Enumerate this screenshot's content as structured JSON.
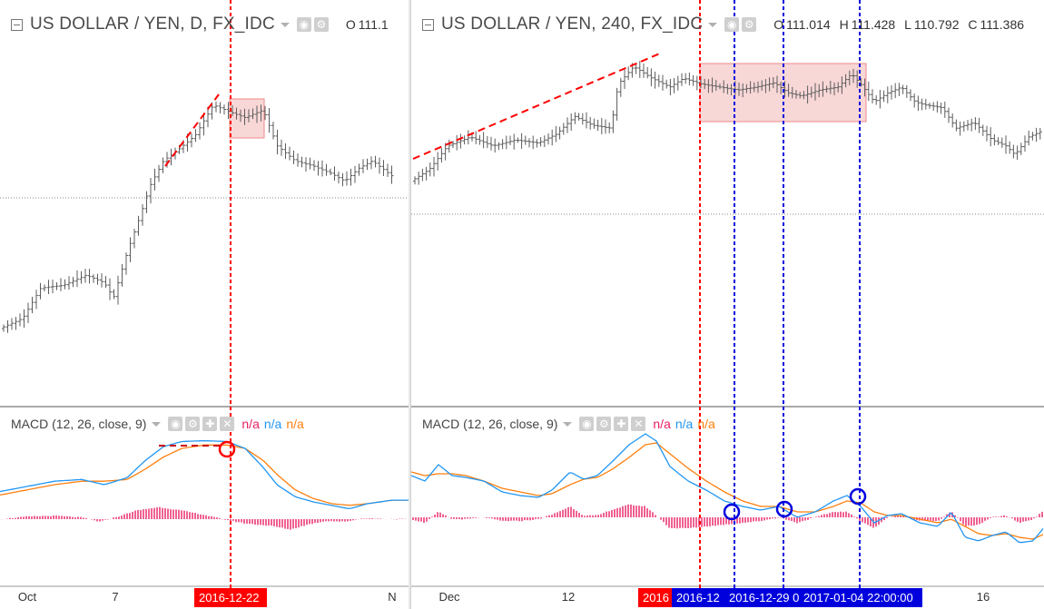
{
  "colors": {
    "candle": "#5c5c5c",
    "macd": "#2196f3",
    "signal": "#ff7f0e",
    "histogram": "#e91e63",
    "red": "#ff0000",
    "blue": "#0000dd",
    "box_fill": "#f8d7d7",
    "box_stroke": "#ef8a8a",
    "na_pink": "#e91e63",
    "na_blue": "#2196f3",
    "na_orange": "#ff7f0e"
  },
  "left": {
    "symbol": "US DOLLAR / YEN, D, FX_IDC",
    "ohlc": [
      {
        "label": "O",
        "value": "111.1"
      }
    ],
    "indicator": "MACD (12, 26, close, 9)",
    "na": [
      "n/a",
      "n/a",
      "n/a"
    ],
    "x_labels": [
      {
        "text": "Oct",
        "pos": 30
      },
      {
        "text": "7",
        "pos": 127
      },
      {
        "text": "N",
        "pos": 432
      }
    ],
    "date_tag": {
      "text": "2016-12-22",
      "bg": "#ff0000"
    }
  },
  "right": {
    "symbol": "US DOLLAR / YEN, 240, FX_IDC",
    "ohlc": [
      {
        "label": "O",
        "value": "111.014"
      },
      {
        "label": "H",
        "value": "111.428"
      },
      {
        "label": "L",
        "value": "110.792"
      },
      {
        "label": "C",
        "value": "111.386"
      }
    ],
    "indicator": "MACD (12, 26, close, 9)",
    "na": [
      "n/a",
      "n/a",
      "n/a"
    ],
    "x_labels": [
      {
        "text": "Dec",
        "pos": 42
      },
      {
        "text": "12",
        "pos": 173
      },
      {
        "text": "16",
        "pos": 630
      }
    ],
    "date_tags": [
      {
        "text": "2016",
        "bg": "#ff0000"
      },
      {
        "text": "2016-12",
        "bg": "#0000dd"
      },
      {
        "text": "2016-12-29 0",
        "bg": "#0000dd"
      },
      {
        "text": "2017-01-04 22:00:00",
        "bg": "#0000dd"
      }
    ]
  },
  "chart_data": [
    {
      "type": "candlestick",
      "title": "US DOLLAR / YEN, D, FX_IDC",
      "subplot": "MACD (12, 26, close, 9)",
      "x_ticks": [
        "Oct",
        "7",
        "N"
      ],
      "price_path": [
        [
          0,
          0.1
        ],
        [
          25,
          0.14
        ],
        [
          45,
          0.26
        ],
        [
          70,
          0.27
        ],
        [
          95,
          0.31
        ],
        [
          115,
          0.28
        ],
        [
          125,
          0.22
        ],
        [
          140,
          0.4
        ],
        [
          155,
          0.55
        ],
        [
          165,
          0.66
        ],
        [
          180,
          0.76
        ],
        [
          195,
          0.8
        ],
        [
          215,
          0.86
        ],
        [
          235,
          0.98
        ],
        [
          255,
          0.95
        ],
        [
          270,
          0.93
        ],
        [
          290,
          0.96
        ],
        [
          305,
          0.82
        ],
        [
          325,
          0.76
        ],
        [
          345,
          0.74
        ],
        [
          365,
          0.71
        ],
        [
          380,
          0.68
        ],
        [
          395,
          0.73
        ],
        [
          410,
          0.76
        ],
        [
          432,
          0.7
        ]
      ],
      "macd_path": [
        [
          0,
          0.32
        ],
        [
          30,
          0.38
        ],
        [
          60,
          0.44
        ],
        [
          90,
          0.46
        ],
        [
          115,
          0.4
        ],
        [
          140,
          0.48
        ],
        [
          160,
          0.68
        ],
        [
          180,
          0.84
        ],
        [
          200,
          0.9
        ],
        [
          225,
          0.91
        ],
        [
          250,
          0.9
        ],
        [
          270,
          0.82
        ],
        [
          290,
          0.6
        ],
        [
          305,
          0.4
        ],
        [
          325,
          0.26
        ],
        [
          345,
          0.2
        ],
        [
          365,
          0.16
        ],
        [
          385,
          0.12
        ],
        [
          405,
          0.18
        ],
        [
          432,
          0.22
        ]
      ],
      "signal_path": [
        [
          0,
          0.28
        ],
        [
          30,
          0.34
        ],
        [
          60,
          0.4
        ],
        [
          90,
          0.44
        ],
        [
          115,
          0.44
        ],
        [
          140,
          0.46
        ],
        [
          160,
          0.58
        ],
        [
          180,
          0.72
        ],
        [
          200,
          0.82
        ],
        [
          225,
          0.86
        ],
        [
          250,
          0.86
        ],
        [
          270,
          0.82
        ],
        [
          290,
          0.68
        ],
        [
          305,
          0.52
        ],
        [
          325,
          0.34
        ],
        [
          345,
          0.24
        ],
        [
          365,
          0.18
        ],
        [
          385,
          0.16
        ],
        [
          405,
          0.18
        ],
        [
          432,
          0.22
        ]
      ],
      "hist_path": [
        [
          0,
          0.0
        ],
        [
          30,
          0.03
        ],
        [
          60,
          0.04
        ],
        [
          90,
          0.02
        ],
        [
          110,
          -0.03
        ],
        [
          130,
          0.03
        ],
        [
          150,
          0.1
        ],
        [
          175,
          0.14
        ],
        [
          200,
          0.1
        ],
        [
          225,
          0.05
        ],
        [
          245,
          0.0
        ],
        [
          270,
          -0.05
        ],
        [
          300,
          -0.08
        ],
        [
          320,
          -0.12
        ],
        [
          340,
          -0.06
        ],
        [
          360,
          -0.02
        ],
        [
          380,
          -0.03
        ],
        [
          400,
          0.01
        ],
        [
          432,
          0.0
        ]
      ]
    },
    {
      "type": "candlestick",
      "title": "US DOLLAR / YEN, 240, FX_IDC",
      "subplot": "MACD (12, 26, close, 9)",
      "ohlc": {
        "open": 111.014,
        "high": 111.428,
        "low": 110.792,
        "close": 111.386
      },
      "x_ticks": [
        "Dec",
        "12",
        "16"
      ],
      "price_path": [
        [
          0,
          0.2
        ],
        [
          20,
          0.28
        ],
        [
          40,
          0.44
        ],
        [
          65,
          0.5
        ],
        [
          90,
          0.44
        ],
        [
          115,
          0.48
        ],
        [
          140,
          0.46
        ],
        [
          160,
          0.52
        ],
        [
          180,
          0.64
        ],
        [
          200,
          0.58
        ],
        [
          220,
          0.56
        ],
        [
          228,
          0.86
        ],
        [
          245,
          0.98
        ],
        [
          265,
          0.9
        ],
        [
          285,
          0.84
        ],
        [
          300,
          0.9
        ],
        [
          320,
          0.86
        ],
        [
          340,
          0.84
        ],
        [
          360,
          0.82
        ],
        [
          380,
          0.84
        ],
        [
          400,
          0.87
        ],
        [
          415,
          0.8
        ],
        [
          430,
          0.78
        ],
        [
          450,
          0.82
        ],
        [
          470,
          0.84
        ],
        [
          485,
          0.93
        ],
        [
          495,
          0.86
        ],
        [
          510,
          0.74
        ],
        [
          525,
          0.8
        ],
        [
          540,
          0.84
        ],
        [
          555,
          0.74
        ],
        [
          565,
          0.72
        ],
        [
          585,
          0.7
        ],
        [
          600,
          0.56
        ],
        [
          620,
          0.6
        ],
        [
          640,
          0.48
        ],
        [
          655,
          0.44
        ],
        [
          665,
          0.38
        ],
        [
          680,
          0.5
        ],
        [
          698,
          0.55
        ]
      ],
      "macd_path": [
        [
          0,
          0.46
        ],
        [
          15,
          0.4
        ],
        [
          30,
          0.58
        ],
        [
          45,
          0.46
        ],
        [
          60,
          0.44
        ],
        [
          80,
          0.4
        ],
        [
          100,
          0.28
        ],
        [
          120,
          0.24
        ],
        [
          140,
          0.22
        ],
        [
          155,
          0.3
        ],
        [
          175,
          0.5
        ],
        [
          190,
          0.42
        ],
        [
          205,
          0.46
        ],
        [
          220,
          0.6
        ],
        [
          240,
          0.8
        ],
        [
          258,
          0.92
        ],
        [
          270,
          0.84
        ],
        [
          285,
          0.56
        ],
        [
          305,
          0.4
        ],
        [
          325,
          0.3
        ],
        [
          345,
          0.18
        ],
        [
          365,
          0.12
        ],
        [
          385,
          0.08
        ],
        [
          405,
          0.12
        ],
        [
          425,
          0.0
        ],
        [
          445,
          0.06
        ],
        [
          465,
          0.18
        ],
        [
          480,
          0.24
        ],
        [
          495,
          0.12
        ],
        [
          510,
          -0.06
        ],
        [
          525,
          0.02
        ],
        [
          540,
          0.04
        ],
        [
          560,
          -0.06
        ],
        [
          580,
          -0.1
        ],
        [
          595,
          0.06
        ],
        [
          610,
          -0.22
        ],
        [
          625,
          -0.26
        ],
        [
          640,
          -0.2
        ],
        [
          655,
          -0.16
        ],
        [
          670,
          -0.28
        ],
        [
          685,
          -0.26
        ],
        [
          698,
          -0.1
        ]
      ],
      "signal_path": [
        [
          0,
          0.5
        ],
        [
          15,
          0.46
        ],
        [
          30,
          0.48
        ],
        [
          45,
          0.48
        ],
        [
          60,
          0.46
        ],
        [
          80,
          0.4
        ],
        [
          100,
          0.32
        ],
        [
          120,
          0.28
        ],
        [
          140,
          0.24
        ],
        [
          155,
          0.26
        ],
        [
          175,
          0.36
        ],
        [
          190,
          0.42
        ],
        [
          205,
          0.44
        ],
        [
          220,
          0.52
        ],
        [
          240,
          0.66
        ],
        [
          258,
          0.8
        ],
        [
          270,
          0.82
        ],
        [
          285,
          0.7
        ],
        [
          305,
          0.54
        ],
        [
          325,
          0.4
        ],
        [
          345,
          0.28
        ],
        [
          365,
          0.18
        ],
        [
          385,
          0.12
        ],
        [
          405,
          0.12
        ],
        [
          425,
          0.06
        ],
        [
          445,
          0.06
        ],
        [
          465,
          0.12
        ],
        [
          480,
          0.18
        ],
        [
          495,
          0.16
        ],
        [
          510,
          0.06
        ],
        [
          525,
          0.02
        ],
        [
          540,
          0.02
        ],
        [
          560,
          -0.02
        ],
        [
          580,
          -0.06
        ],
        [
          595,
          -0.02
        ],
        [
          610,
          -0.1
        ],
        [
          625,
          -0.18
        ],
        [
          640,
          -0.2
        ],
        [
          655,
          -0.18
        ],
        [
          670,
          -0.22
        ],
        [
          685,
          -0.24
        ],
        [
          698,
          -0.18
        ]
      ],
      "hist_path": [
        [
          0,
          -0.02
        ],
        [
          15,
          -0.06
        ],
        [
          30,
          0.06
        ],
        [
          45,
          -0.02
        ],
        [
          60,
          -0.02
        ],
        [
          80,
          0.0
        ],
        [
          100,
          -0.04
        ],
        [
          120,
          -0.04
        ],
        [
          140,
          -0.02
        ],
        [
          155,
          0.03
        ],
        [
          175,
          0.12
        ],
        [
          190,
          0.02
        ],
        [
          205,
          0.02
        ],
        [
          220,
          0.08
        ],
        [
          240,
          0.14
        ],
        [
          258,
          0.12
        ],
        [
          270,
          0.02
        ],
        [
          285,
          -0.12
        ],
        [
          305,
          -0.12
        ],
        [
          325,
          -0.1
        ],
        [
          345,
          -0.08
        ],
        [
          365,
          -0.06
        ],
        [
          385,
          -0.04
        ],
        [
          405,
          0.0
        ],
        [
          425,
          -0.06
        ],
        [
          445,
          0.0
        ],
        [
          465,
          0.06
        ],
        [
          480,
          0.06
        ],
        [
          495,
          -0.04
        ],
        [
          510,
          -0.12
        ],
        [
          525,
          0.0
        ],
        [
          540,
          0.02
        ],
        [
          560,
          -0.04
        ],
        [
          580,
          -0.04
        ],
        [
          595,
          0.07
        ],
        [
          610,
          -0.1
        ],
        [
          625,
          -0.08
        ],
        [
          640,
          0.0
        ],
        [
          655,
          0.02
        ],
        [
          670,
          -0.06
        ],
        [
          685,
          -0.02
        ],
        [
          698,
          0.08
        ]
      ]
    }
  ]
}
